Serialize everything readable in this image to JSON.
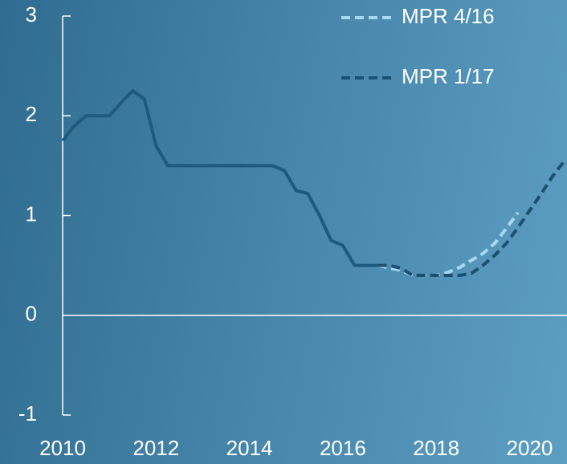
{
  "chart_data": {
    "type": "line",
    "xlim": [
      2010,
      2020.8
    ],
    "xticks": [
      2010,
      2012,
      2014,
      2016,
      2018,
      2020
    ],
    "ylim": [
      -1,
      3
    ],
    "yticks": [
      -1,
      0,
      1,
      2,
      3
    ],
    "zero_line": true,
    "legend": "top-right",
    "series": [
      {
        "color": "#1f5a7e",
        "dash": false,
        "x": [
          2010,
          2010.25,
          2010.5,
          2011,
          2011.25,
          2011.5,
          2011.75,
          2012,
          2012.25,
          2013,
          2014,
          2014.5,
          2014.75,
          2015,
          2015.25,
          2015.5,
          2015.75,
          2016,
          2016.25,
          2016.75
        ],
        "values": [
          1.75,
          1.9,
          2.0,
          2.0,
          2.13,
          2.25,
          2.17,
          1.7,
          1.5,
          1.5,
          1.5,
          1.5,
          1.45,
          1.25,
          1.22,
          1.0,
          0.75,
          0.7,
          0.5,
          0.5
        ]
      },
      {
        "name": "MPR 4/16",
        "color": "#a9d9f2",
        "dash": true,
        "x": [
          2016.75,
          2017.25,
          2017.5,
          2018,
          2018.25,
          2018.5,
          2018.75,
          2019,
          2019.25,
          2019.5,
          2019.75
        ],
        "values": [
          0.5,
          0.45,
          0.4,
          0.4,
          0.43,
          0.48,
          0.55,
          0.62,
          0.72,
          0.87,
          1.03
        ]
      },
      {
        "name": "MPR 1/17",
        "color": "#1d4f70",
        "dash": true,
        "x": [
          2016.75,
          2017,
          2017.25,
          2017.5,
          2017.75,
          2018,
          2018.5,
          2018.75,
          2019,
          2019.25,
          2019.5,
          2019.75,
          2020,
          2020.25,
          2020.5,
          2020.75
        ],
        "values": [
          0.5,
          0.5,
          0.47,
          0.4,
          0.4,
          0.4,
          0.4,
          0.42,
          0.5,
          0.6,
          0.72,
          0.88,
          1.05,
          1.22,
          1.4,
          1.55
        ]
      }
    ]
  }
}
